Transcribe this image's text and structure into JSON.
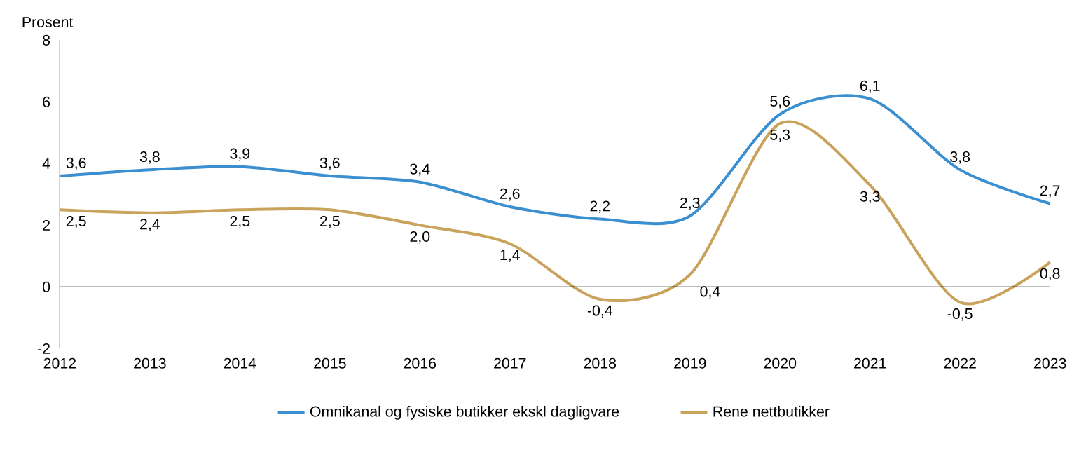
{
  "chart_data": {
    "type": "line",
    "ylabel": "Prosent",
    "categories": [
      "2012",
      "2013",
      "2014",
      "2015",
      "2016",
      "2017",
      "2018",
      "2019",
      "2020",
      "2021",
      "2022",
      "2023"
    ],
    "series": [
      {
        "name": "Omnikanal og fysiske butikker ekskl dagligvare",
        "color": "#3a8fd0",
        "values": [
          3.6,
          3.8,
          3.9,
          3.6,
          3.4,
          2.6,
          2.2,
          2.3,
          5.6,
          6.1,
          3.8,
          2.7
        ],
        "value_labels": [
          "3,6",
          "3,8",
          "3,9",
          "3,6",
          "3,4",
          "2,6",
          "2,2",
          "2,3",
          "5,6",
          "6,1",
          "3,8",
          "2,7"
        ]
      },
      {
        "name": "Rene nettbutikker",
        "color": "#c9a35c",
        "values": [
          2.5,
          2.4,
          2.5,
          2.5,
          2.0,
          1.4,
          -0.4,
          0.4,
          5.3,
          3.3,
          -0.5,
          0.8
        ],
        "value_labels": [
          "2,5",
          "2,4",
          "2,5",
          "2,5",
          "2,0",
          "1,4",
          "-0,4",
          "0,4",
          "5,3",
          "3,3",
          "-0,5",
          "0,8"
        ]
      }
    ],
    "ref_lines": [
      {
        "axis": "y",
        "value": 0,
        "color": "#000000"
      }
    ],
    "ylim": [
      -2,
      8
    ],
    "yticks": [
      -2,
      0,
      2,
      4,
      6,
      8
    ],
    "grid": false,
    "legend": "bottom",
    "marker": "none",
    "line_style": "solid"
  }
}
